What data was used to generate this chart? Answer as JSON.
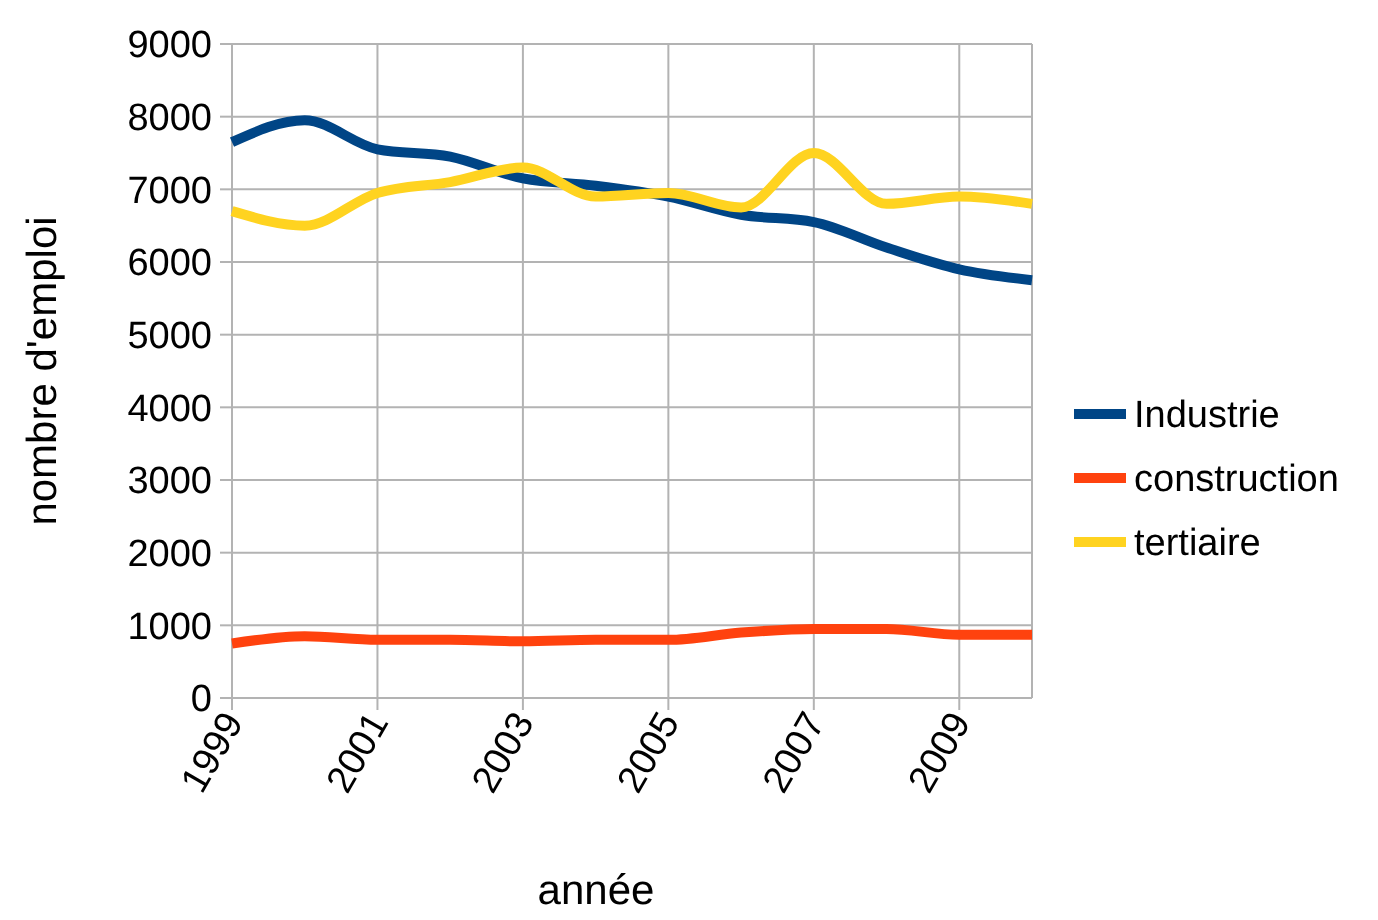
{
  "chart_data": {
    "type": "line",
    "xlabel": "année",
    "ylabel": "nombre d'emploi",
    "x": [
      1999,
      2000,
      2001,
      2002,
      2003,
      2004,
      2005,
      2006,
      2007,
      2008,
      2009,
      2010
    ],
    "xlim": [
      1999,
      2010
    ],
    "xticks": [
      1999,
      2001,
      2003,
      2005,
      2007,
      2009
    ],
    "ylim": [
      0,
      9000
    ],
    "yticks": [
      0,
      1000,
      2000,
      3000,
      4000,
      5000,
      6000,
      7000,
      8000,
      9000
    ],
    "grid": true,
    "legend": "right",
    "marker": "none",
    "line_style": "solid",
    "series": [
      {
        "name": "Industrie",
        "color": "#004586",
        "values": [
          7650,
          7950,
          7550,
          7450,
          7150,
          7050,
          6900,
          6650,
          6550,
          6200,
          5900,
          5750
        ]
      },
      {
        "name": "construction",
        "color": "#ff420e",
        "values": [
          750,
          850,
          800,
          800,
          780,
          800,
          800,
          900,
          950,
          950,
          870,
          870
        ]
      },
      {
        "name": "tertiaire",
        "color": "#ffd320",
        "values": [
          6700,
          6500,
          6950,
          7100,
          7300,
          6900,
          6950,
          6750,
          7500,
          6800,
          6900,
          6800
        ]
      }
    ]
  }
}
